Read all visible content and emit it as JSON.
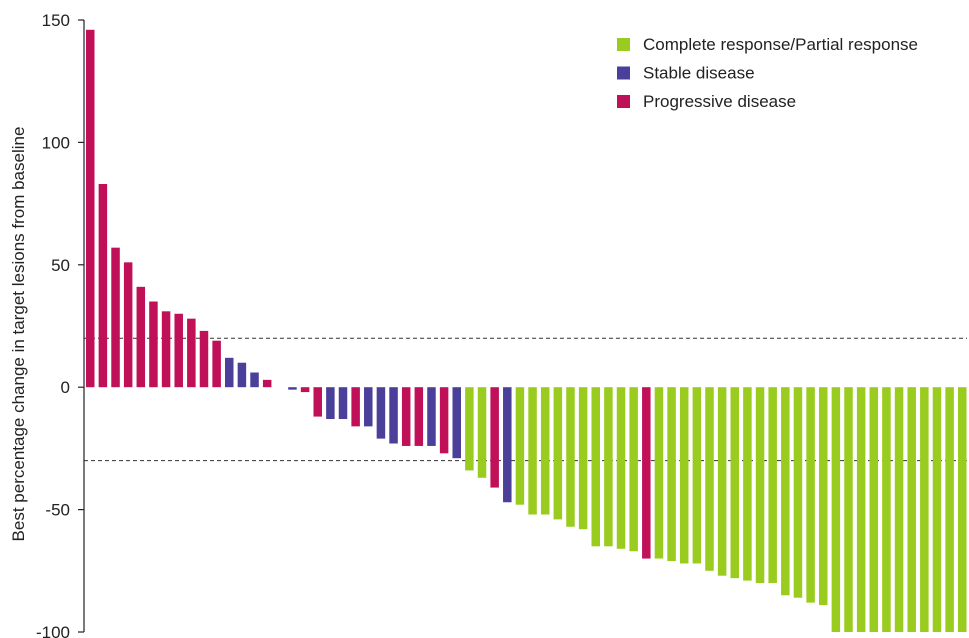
{
  "chart_data": {
    "type": "bar",
    "title": "",
    "xlabel": "",
    "ylabel": "Best percentage change in target lesions from baseline",
    "ylim": [
      -100,
      150
    ],
    "yticks": [
      150,
      100,
      50,
      0,
      -50,
      -100
    ],
    "ytick_labels": [
      "150",
      "100",
      "50",
      "0",
      "-50",
      "-100"
    ],
    "grid": false,
    "legend_position": "top-right",
    "reference_lines": [
      20,
      -30
    ],
    "categories_legend": [
      {
        "key": "CR",
        "name": "Complete response/Partial response",
        "color": "#99cc1f"
      },
      {
        "key": "SD",
        "name": "Stable disease",
        "color": "#4a3f99"
      },
      {
        "key": "PD",
        "name": "Progressive disease",
        "color": "#bf1058"
      }
    ],
    "values": [
      146,
      83,
      57,
      51,
      41,
      35,
      31,
      30,
      28,
      23,
      19,
      12,
      10,
      6,
      3,
      0,
      -1,
      -2,
      -12,
      -13,
      -13,
      -16,
      -16,
      -21,
      -23,
      -24,
      -24,
      -24,
      -27,
      -29,
      -34,
      -37,
      -41,
      -47,
      -48,
      -52,
      -52,
      -54,
      -57,
      -58,
      -65,
      -65,
      -66,
      -67,
      -70,
      -70,
      -71,
      -72,
      -72,
      -75,
      -77,
      -78,
      -79,
      -80,
      -80,
      -85,
      -86,
      -88,
      -89,
      -100,
      -100,
      -100,
      -100,
      -100,
      -100,
      -100,
      -100,
      -100,
      -100,
      -100
    ],
    "groups": [
      "PD",
      "PD",
      "PD",
      "PD",
      "PD",
      "PD",
      "PD",
      "PD",
      "PD",
      "PD",
      "PD",
      "SD",
      "SD",
      "SD",
      "PD",
      "",
      "SD",
      "PD",
      "PD",
      "SD",
      "SD",
      "PD",
      "SD",
      "SD",
      "SD",
      "PD",
      "PD",
      "SD",
      "PD",
      "SD",
      "CR",
      "CR",
      "PD",
      "SD",
      "CR",
      "CR",
      "CR",
      "CR",
      "CR",
      "CR",
      "CR",
      "CR",
      "CR",
      "CR",
      "PD",
      "CR",
      "CR",
      "CR",
      "CR",
      "CR",
      "CR",
      "CR",
      "CR",
      "CR",
      "CR",
      "CR",
      "CR",
      "CR",
      "CR",
      "CR",
      "CR",
      "CR",
      "CR",
      "CR",
      "CR",
      "CR",
      "CR",
      "CR",
      "CR",
      "CR"
    ]
  }
}
